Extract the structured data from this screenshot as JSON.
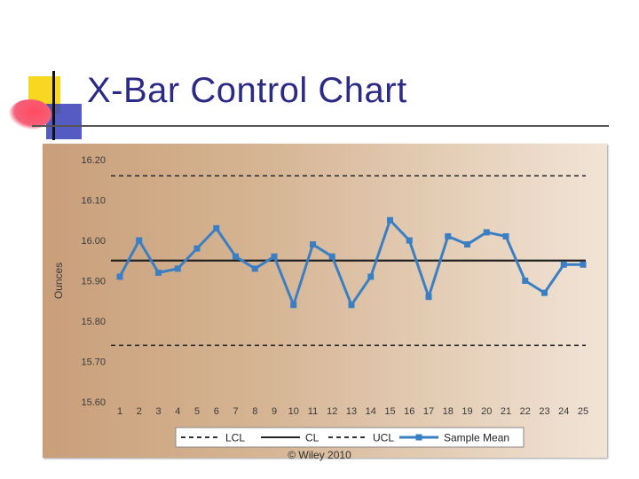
{
  "slide": {
    "title": "X-Bar Control Chart",
    "footer": "© Wiley 2010"
  },
  "colors": {
    "title": "#2b2a86",
    "series": "#3a7fc4",
    "limits": "#333333",
    "center": "#222222"
  },
  "chart_data": {
    "type": "line",
    "title": "",
    "xlabel": "",
    "ylabel": "Ounces",
    "x": [
      1,
      2,
      3,
      4,
      5,
      6,
      7,
      8,
      9,
      10,
      11,
      12,
      13,
      14,
      15,
      16,
      17,
      18,
      19,
      20,
      21,
      22,
      23,
      24,
      25
    ],
    "ylim": [
      15.6,
      16.2
    ],
    "yticks": [
      "15.60",
      "15.70",
      "15.80",
      "15.90",
      "16.00",
      "16.10",
      "16.20"
    ],
    "grid": false,
    "legend_position": "bottom",
    "lcl": 15.74,
    "cl": 15.95,
    "ucl": 16.16,
    "series": [
      {
        "name": "Sample Mean",
        "values": [
          15.91,
          16.0,
          15.92,
          15.93,
          15.98,
          16.03,
          15.96,
          15.93,
          15.96,
          15.84,
          15.99,
          15.96,
          15.84,
          15.91,
          16.05,
          16.0,
          15.86,
          16.01,
          15.99,
          16.02,
          16.01,
          15.9,
          15.87,
          15.94,
          15.94
        ]
      }
    ],
    "legend": [
      "LCL",
      "CL",
      "UCL",
      "Sample Mean"
    ]
  }
}
